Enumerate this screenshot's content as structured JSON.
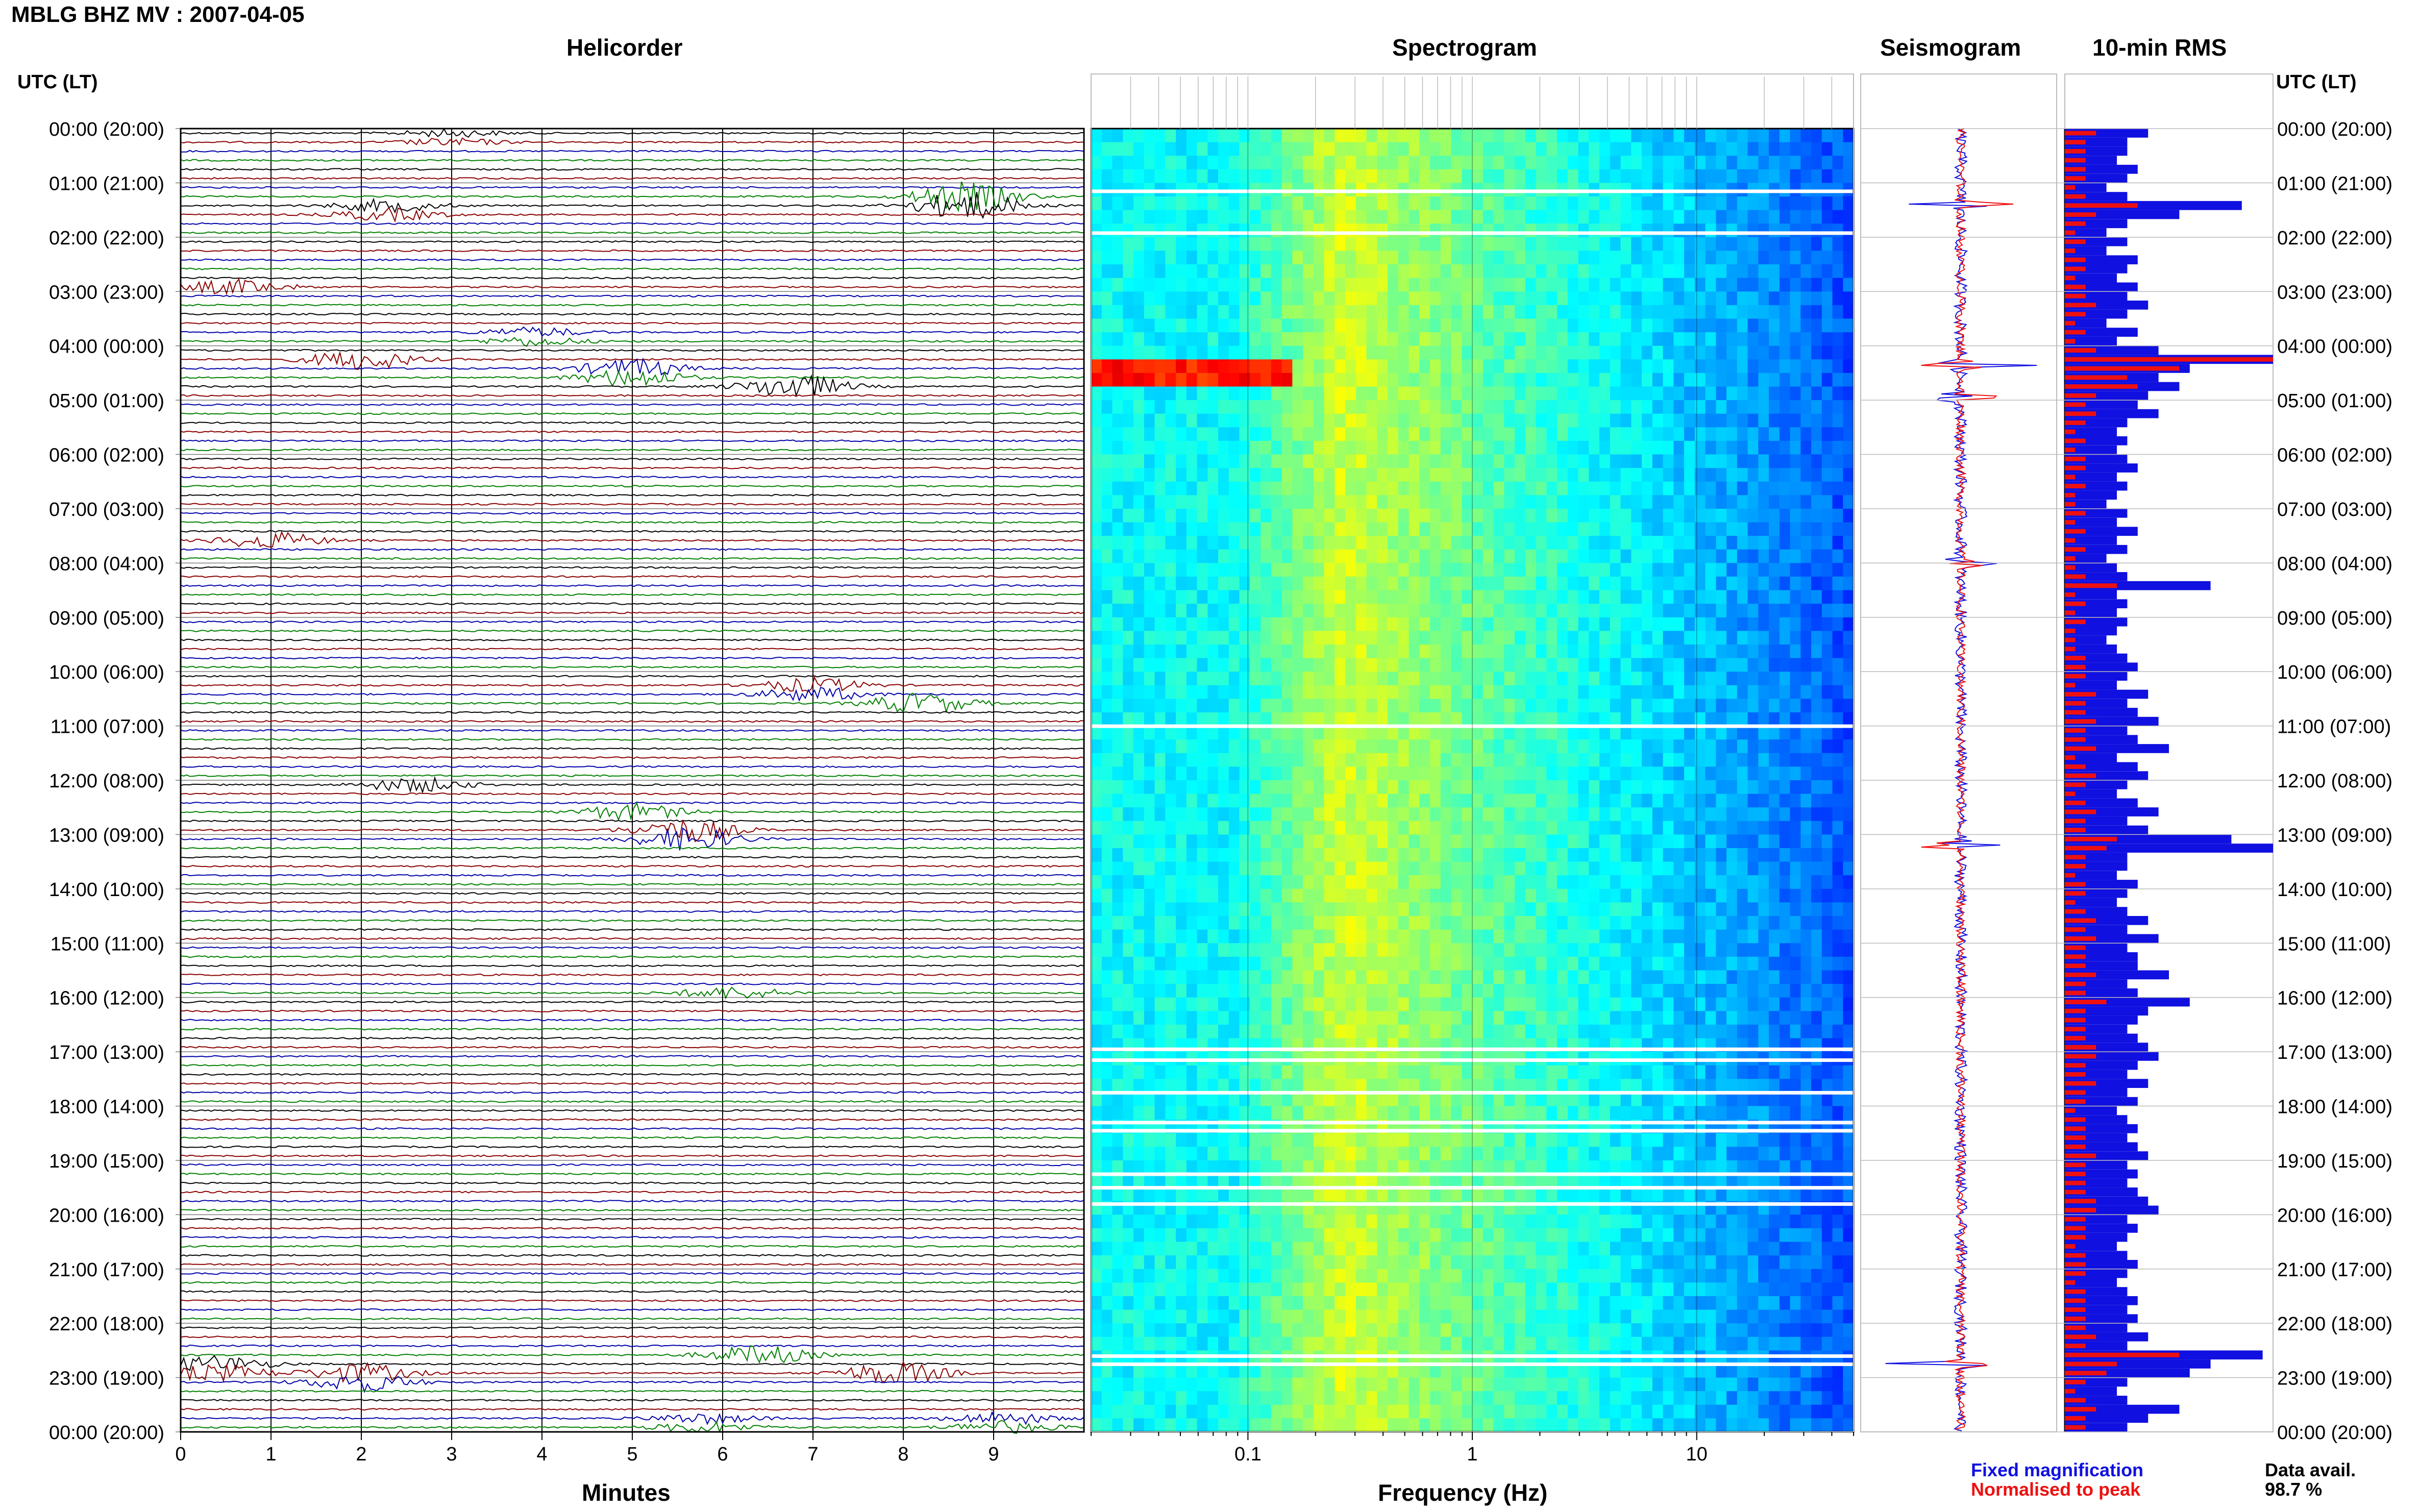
{
  "header": {
    "title": "MBLG BHZ MV : 2007-04-05",
    "left_axis_label": "UTC (LT)",
    "right_axis_label": "UTC (LT)"
  },
  "panels": {
    "helicorder": "Helicorder",
    "spectrogram": "Spectrogram",
    "seismogram": "Seismogram",
    "rms": "10-min RMS"
  },
  "legend": {
    "fixed": "Fixed magnification",
    "normalised": "Normalised to peak",
    "fixed_color": "#1010e0",
    "normalised_color": "#ee1010"
  },
  "data_availability": {
    "label": "Data avail.",
    "value": "98.7 %"
  },
  "chart_data": [
    {
      "type": "line",
      "name": "helicorder",
      "title": "Helicorder",
      "xlabel": "Minutes",
      "x_ticks": [
        "0",
        "1",
        "2",
        "3",
        "4",
        "5",
        "6",
        "7",
        "8",
        "9"
      ],
      "xlim": [
        0,
        10
      ],
      "time_labels": [
        "00:00 (20:00)",
        "01:00 (21:00)",
        "02:00 (22:00)",
        "03:00 (23:00)",
        "04:00 (00:00)",
        "05:00 (01:00)",
        "06:00 (02:00)",
        "07:00 (03:00)",
        "08:00 (04:00)",
        "09:00 (05:00)",
        "10:00 (06:00)",
        "11:00 (07:00)",
        "12:00 (08:00)",
        "13:00 (09:00)",
        "14:00 (10:00)",
        "15:00 (11:00)",
        "16:00 (12:00)",
        "17:00 (13:00)",
        "18:00 (14:00)",
        "19:00 (15:00)",
        "20:00 (16:00)",
        "21:00 (17:00)",
        "22:00 (18:00)",
        "23:00 (19:00)",
        "00:00 (20:00)"
      ],
      "trace_colors": [
        "#000000",
        "#8b0000",
        "#0000aa",
        "#008000"
      ],
      "traces_per_hour": 6
    },
    {
      "type": "heatmap",
      "name": "spectrogram",
      "title": "Spectrogram",
      "xlabel": "Frequency (Hz)",
      "x_scale": "log",
      "xlim": [
        0.02,
        50
      ],
      "x_ticks": [
        "0.1",
        "1",
        "10"
      ],
      "colormap": "jet",
      "data_gaps_hours": [
        1.15,
        1.92,
        11.0,
        16.95,
        17.15,
        17.75,
        18.3,
        18.45,
        19.25,
        19.5,
        19.8,
        22.6,
        22.75
      ]
    },
    {
      "type": "line",
      "name": "seismogram",
      "title": "Seismogram",
      "series": [
        {
          "name": "Fixed magnification",
          "color": "#1010e0"
        },
        {
          "name": "Normalised to peak",
          "color": "#ee1010"
        }
      ],
      "peaks_hours": [
        1.4,
        4.35,
        4.95,
        8.0,
        13.2,
        22.75
      ]
    },
    {
      "type": "bar",
      "name": "rms",
      "title": "10-min RMS",
      "orientation": "horizontal",
      "bins": 144,
      "series": [
        {
          "name": "Fixed magnification",
          "color": "#1010e0",
          "values": [
            0.4,
            0.3,
            0.3,
            0.25,
            0.35,
            0.3,
            0.2,
            0.3,
            0.85,
            0.55,
            0.3,
            0.2,
            0.3,
            0.2,
            0.35,
            0.3,
            0.25,
            0.35,
            0.3,
            0.4,
            0.3,
            0.2,
            0.35,
            0.25,
            0.45,
            1.0,
            0.6,
            0.45,
            0.55,
            0.4,
            0.35,
            0.45,
            0.3,
            0.25,
            0.3,
            0.25,
            0.3,
            0.35,
            0.25,
            0.3,
            0.25,
            0.2,
            0.3,
            0.25,
            0.35,
            0.25,
            0.3,
            0.2,
            0.25,
            0.3,
            0.7,
            0.25,
            0.3,
            0.25,
            0.3,
            0.25,
            0.2,
            0.25,
            0.3,
            0.35,
            0.3,
            0.25,
            0.4,
            0.3,
            0.35,
            0.45,
            0.3,
            0.35,
            0.5,
            0.25,
            0.35,
            0.4,
            0.3,
            0.25,
            0.35,
            0.45,
            0.3,
            0.4,
            0.8,
            1.0,
            0.3,
            0.3,
            0.25,
            0.35,
            0.3,
            0.25,
            0.3,
            0.4,
            0.3,
            0.45,
            0.3,
            0.35,
            0.35,
            0.5,
            0.3,
            0.35,
            0.6,
            0.4,
            0.35,
            0.3,
            0.35,
            0.4,
            0.45,
            0.35,
            0.3,
            0.4,
            0.3,
            0.35,
            0.25,
            0.3,
            0.35,
            0.3,
            0.35,
            0.4,
            0.3,
            0.35,
            0.3,
            0.35,
            0.4,
            0.45,
            0.3,
            0.35,
            0.3,
            0.25,
            0.3,
            0.35,
            0.3,
            0.25,
            0.3,
            0.35,
            0.3,
            0.35,
            0.3,
            0.4,
            0.3,
            0.95,
            0.7,
            0.6,
            0.3,
            0.25,
            0.3,
            0.55,
            0.4,
            0.3
          ]
        },
        {
          "name": "Normalised to peak",
          "color": "#ee1010",
          "values": [
            0.15,
            0.1,
            0.1,
            0.1,
            0.1,
            0.1,
            0.05,
            0.1,
            0.35,
            0.15,
            0.1,
            0.05,
            0.1,
            0.05,
            0.1,
            0.1,
            0.05,
            0.1,
            0.1,
            0.15,
            0.1,
            0.05,
            0.1,
            0.05,
            0.15,
            1.0,
            0.55,
            0.3,
            0.35,
            0.15,
            0.1,
            0.15,
            0.1,
            0.05,
            0.1,
            0.05,
            0.1,
            0.1,
            0.05,
            0.1,
            0.05,
            0.05,
            0.1,
            0.05,
            0.1,
            0.05,
            0.1,
            0.05,
            0.05,
            0.1,
            0.25,
            0.05,
            0.1,
            0.05,
            0.1,
            0.05,
            0.05,
            0.05,
            0.1,
            0.1,
            0.1,
            0.05,
            0.15,
            0.1,
            0.1,
            0.15,
            0.1,
            0.1,
            0.15,
            0.05,
            0.1,
            0.15,
            0.1,
            0.05,
            0.1,
            0.15,
            0.1,
            0.1,
            0.25,
            0.2,
            0.1,
            0.1,
            0.05,
            0.1,
            0.1,
            0.05,
            0.1,
            0.15,
            0.1,
            0.15,
            0.1,
            0.1,
            0.1,
            0.15,
            0.1,
            0.1,
            0.2,
            0.1,
            0.1,
            0.1,
            0.1,
            0.15,
            0.15,
            0.1,
            0.1,
            0.15,
            0.1,
            0.1,
            0.05,
            0.1,
            0.1,
            0.1,
            0.1,
            0.15,
            0.1,
            0.1,
            0.1,
            0.1,
            0.15,
            0.15,
            0.1,
            0.1,
            0.1,
            0.05,
            0.1,
            0.1,
            0.1,
            0.05,
            0.1,
            0.1,
            0.1,
            0.1,
            0.1,
            0.15,
            0.1,
            0.55,
            0.25,
            0.2,
            0.1,
            0.05,
            0.1,
            0.15,
            0.1,
            0.1
          ]
        }
      ]
    }
  ]
}
